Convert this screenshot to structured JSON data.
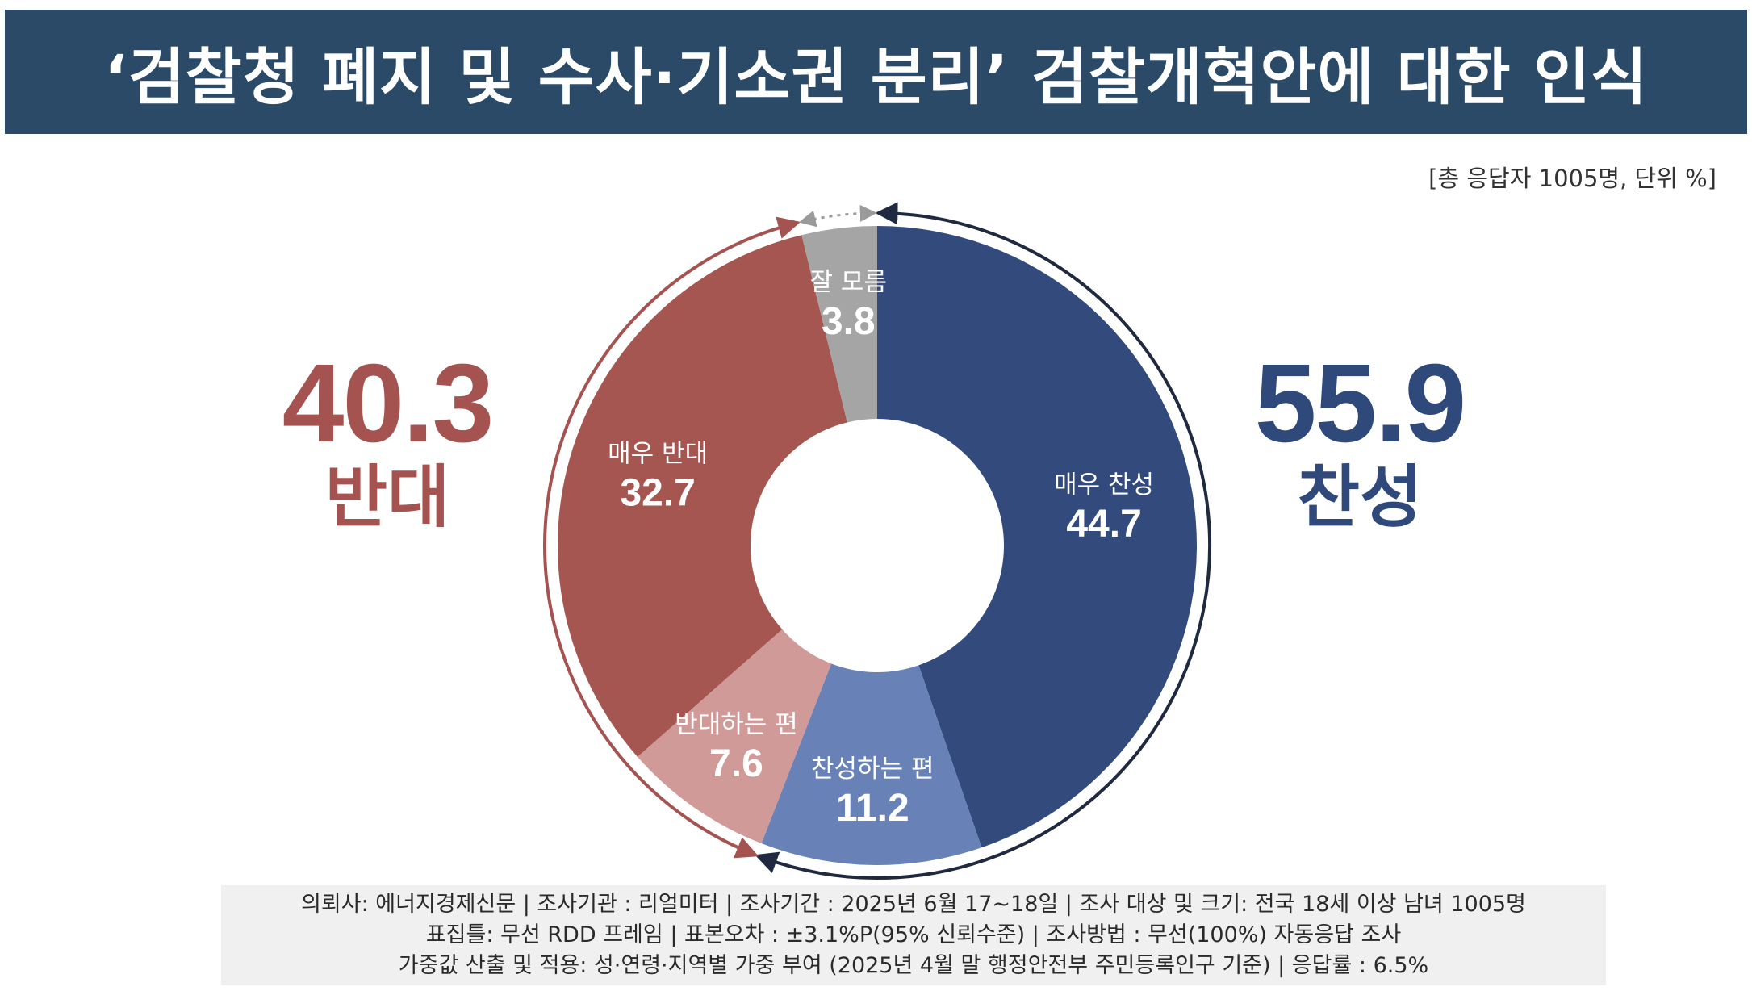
{
  "title": "‘검찰청 폐지 및 수사·기소권 분리’ 검찰개혁안에 대한 인식",
  "unit_note": "[총 응답자 1005명, 단위 %]",
  "colors": {
    "title_bg": "#2b4a67",
    "oppose_text": "#a55350",
    "support_text": "#2f4a7a",
    "strongly_support": "#334a7c",
    "somewhat_support": "#6882b8",
    "somewhat_oppose": "#cf9a98",
    "strongly_oppose": "#a55650",
    "dont_know": "#a5a5a5",
    "oppose_arc": "#a55350",
    "support_arc": "#1f2a40",
    "unknown_arc": "#9a9a9a"
  },
  "totals": {
    "oppose": {
      "value": "40.3",
      "label": "반대"
    },
    "support": {
      "value": "55.9",
      "label": "찬성"
    }
  },
  "chart_data": {
    "type": "pie",
    "variant": "donut",
    "start": "top",
    "direction": "clockwise",
    "categories": [
      "매우 찬성",
      "찬성하는 편",
      "반대하는 편",
      "매우 반대",
      "잘 모름"
    ],
    "values": [
      44.7,
      11.2,
      7.6,
      32.7,
      3.8
    ],
    "value_labels": [
      "44.7",
      "11.2",
      "7.6",
      "32.7",
      "3.8"
    ],
    "colors": [
      "#334a7c",
      "#6882b8",
      "#cf9a98",
      "#a55650",
      "#a5a5a5"
    ],
    "groups": [
      {
        "name": "찬성",
        "total": 55.9,
        "members": [
          "매우 찬성",
          "찬성하는 편"
        ]
      },
      {
        "name": "반대",
        "total": 40.3,
        "members": [
          "반대하는 편",
          "매우 반대"
        ]
      },
      {
        "name": "잘 모름",
        "total": 3.8,
        "members": [
          "잘 모름"
        ]
      }
    ]
  },
  "footer": {
    "line1": "의뢰사: 에너지경제신문 | 조사기관 : 리얼미터  |  조사기간 : 2025년 6월 17~18일 | 조사 대상 및 크기: 전국 18세 이상 남녀 1005명",
    "line2": "표집틀: 무선 RDD 프레임 | 표본오차 : ±3.1%P(95% 신뢰수준) | 조사방법 : 무선(100%) 자동응답 조사",
    "line3": "가중값 산출 및 적용: 성·연령·지역별 가중 부여 (2025년 4월 말 행정안전부 주민등록인구 기준) | 응답률 : 6.5%"
  }
}
